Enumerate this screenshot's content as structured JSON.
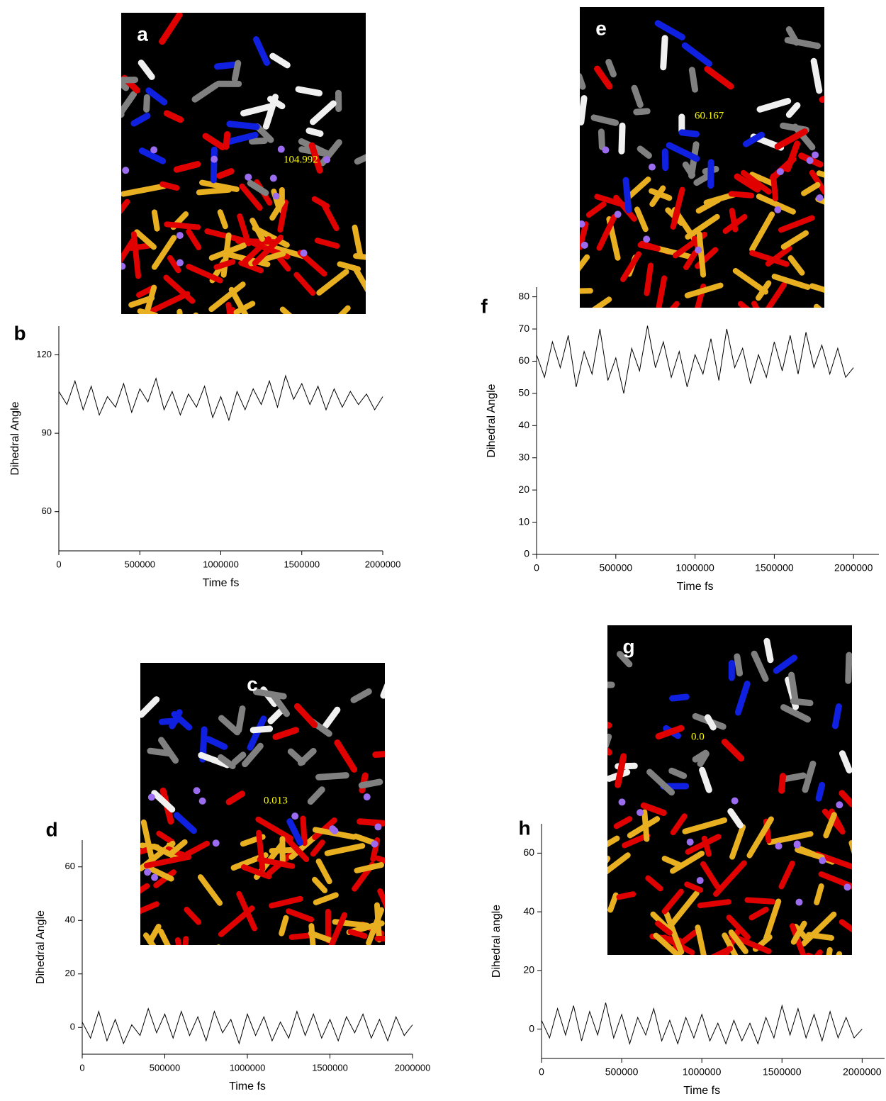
{
  "panels": [
    {
      "label": "a",
      "annotation": "104.992"
    },
    {
      "label": "e",
      "annotation": "60.167"
    },
    {
      "label": "c",
      "annotation": "0.013"
    },
    {
      "label": "g",
      "annotation": "0.0"
    }
  ],
  "chart_data": [
    {
      "type": "line",
      "panel_label": "b",
      "xlabel": "Time fs",
      "ylabel": "Dihedral Angle",
      "xlim": [
        0,
        2000000
      ],
      "ylim": [
        45,
        131
      ],
      "xticks": [
        0,
        500000,
        1000000,
        1500000,
        2000000
      ],
      "yticks": [
        60,
        90,
        120
      ],
      "x": [
        0,
        50000,
        100000,
        150000,
        200000,
        250000,
        300000,
        350000,
        400000,
        450000,
        500000,
        550000,
        600000,
        650000,
        700000,
        750000,
        800000,
        850000,
        900000,
        950000,
        1000000,
        1050000,
        1100000,
        1150000,
        1200000,
        1250000,
        1300000,
        1350000,
        1400000,
        1450000,
        1500000,
        1550000,
        1600000,
        1650000,
        1700000,
        1750000,
        1800000,
        1850000,
        1900000,
        1950000,
        2000000
      ],
      "series": [
        {
          "color": "#000000",
          "values": [
            106,
            101,
            110,
            99,
            108,
            97,
            104,
            100,
            109,
            98,
            107,
            102,
            111,
            99,
            106,
            97,
            105,
            100,
            108,
            96,
            104,
            95,
            106,
            99,
            107,
            101,
            110,
            100,
            112,
            103,
            109,
            101,
            108,
            99,
            107,
            100,
            106,
            101,
            105,
            99,
            104
          ]
        }
      ]
    },
    {
      "type": "line",
      "panel_label": "f",
      "xlabel": "Time fs",
      "ylabel": "Dihedral Angle",
      "xlim": [
        0,
        2160000
      ],
      "ylim": [
        0,
        83
      ],
      "xticks": [
        0,
        500000,
        1000000,
        1500000,
        2000000
      ],
      "yticks": [
        0,
        10,
        20,
        30,
        40,
        50,
        60,
        70,
        80
      ],
      "x": [
        0,
        50000,
        100000,
        150000,
        200000,
        250000,
        300000,
        350000,
        400000,
        450000,
        500000,
        550000,
        600000,
        650000,
        700000,
        750000,
        800000,
        850000,
        900000,
        950000,
        1000000,
        1050000,
        1100000,
        1150000,
        1200000,
        1250000,
        1300000,
        1350000,
        1400000,
        1450000,
        1500000,
        1550000,
        1600000,
        1650000,
        1700000,
        1750000,
        1800000,
        1850000,
        1900000,
        1950000,
        2000000
      ],
      "series": [
        {
          "color": "#000000",
          "values": [
            62,
            55,
            66,
            58,
            68,
            52,
            63,
            56,
            70,
            54,
            61,
            50,
            64,
            57,
            71,
            58,
            66,
            55,
            63,
            52,
            62,
            56,
            67,
            54,
            70,
            58,
            64,
            53,
            62,
            55,
            66,
            57,
            68,
            56,
            69,
            58,
            65,
            56,
            64,
            55,
            58
          ]
        }
      ]
    },
    {
      "type": "line",
      "panel_label": "d",
      "xlabel": "Time fs",
      "ylabel": "Dihedral Angle",
      "xlim": [
        0,
        2000000
      ],
      "ylim": [
        -10,
        70
      ],
      "xticks": [
        0,
        500000,
        1000000,
        1500000,
        2000000
      ],
      "yticks": [
        0,
        20,
        40,
        60
      ],
      "x": [
        0,
        50000,
        100000,
        150000,
        200000,
        250000,
        300000,
        350000,
        400000,
        450000,
        500000,
        550000,
        600000,
        650000,
        700000,
        750000,
        800000,
        850000,
        900000,
        950000,
        1000000,
        1050000,
        1100000,
        1150000,
        1200000,
        1250000,
        1300000,
        1350000,
        1400000,
        1450000,
        1500000,
        1550000,
        1600000,
        1650000,
        1700000,
        1750000,
        1800000,
        1850000,
        1900000,
        1950000,
        2000000
      ],
      "series": [
        {
          "color": "#000000",
          "values": [
            2,
            -4,
            6,
            -5,
            3,
            -6,
            1,
            -3,
            7,
            -2,
            5,
            -4,
            6,
            -3,
            4,
            -5,
            6,
            -2,
            3,
            -6,
            5,
            -3,
            4,
            -5,
            2,
            -4,
            6,
            -3,
            5,
            -4,
            3,
            -5,
            4,
            -2,
            5,
            -4,
            3,
            -5,
            4,
            -3,
            1
          ]
        }
      ]
    },
    {
      "type": "line",
      "panel_label": "h",
      "xlabel": "Time fs",
      "ylabel": "Dihedral angle",
      "xlim": [
        0,
        2140000
      ],
      "ylim": [
        -10,
        70
      ],
      "xticks": [
        0,
        500000,
        1000000,
        1500000,
        2000000
      ],
      "yticks": [
        0,
        20,
        40,
        60
      ],
      "x": [
        0,
        50000,
        100000,
        150000,
        200000,
        250000,
        300000,
        350000,
        400000,
        450000,
        500000,
        550000,
        600000,
        650000,
        700000,
        750000,
        800000,
        850000,
        900000,
        950000,
        1000000,
        1050000,
        1100000,
        1150000,
        1200000,
        1250000,
        1300000,
        1350000,
        1400000,
        1450000,
        1500000,
        1550000,
        1600000,
        1650000,
        1700000,
        1750000,
        1800000,
        1850000,
        1900000,
        1950000,
        2000000
      ],
      "series": [
        {
          "color": "#000000",
          "values": [
            3,
            -3,
            7,
            -2,
            8,
            -4,
            6,
            -2,
            9,
            -3,
            5,
            -5,
            4,
            -2,
            7,
            -4,
            3,
            -5,
            4,
            -3,
            5,
            -4,
            2,
            -5,
            3,
            -4,
            2,
            -5,
            4,
            -3,
            8,
            -2,
            7,
            -3,
            5,
            -4,
            6,
            -3,
            4,
            -3,
            0
          ]
        }
      ]
    }
  ]
}
